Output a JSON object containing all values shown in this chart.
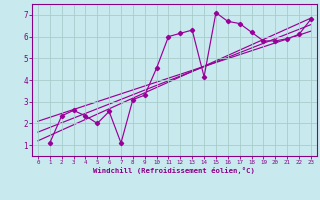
{
  "title": "",
  "xlabel": "Windchill (Refroidissement éolien,°C)",
  "ylabel": "",
  "bg_color": "#c8eaee",
  "line_color": "#990099",
  "grid_color": "#a8cccc",
  "axis_color": "#880088",
  "xlim": [
    -0.5,
    23.5
  ],
  "ylim": [
    0.5,
    7.5
  ],
  "xticks": [
    0,
    1,
    2,
    3,
    4,
    5,
    6,
    7,
    8,
    9,
    10,
    11,
    12,
    13,
    14,
    15,
    16,
    17,
    18,
    19,
    20,
    21,
    22,
    23
  ],
  "yticks": [
    1,
    2,
    3,
    4,
    5,
    6,
    7
  ],
  "scatter_x": [
    1,
    2,
    3,
    4,
    5,
    6,
    7,
    8,
    9,
    10,
    11,
    12,
    13,
    14,
    15,
    16,
    17,
    18,
    19,
    20,
    21,
    22,
    23
  ],
  "scatter_y": [
    1.1,
    2.35,
    2.6,
    2.35,
    2.0,
    2.55,
    1.1,
    3.1,
    3.3,
    4.55,
    6.0,
    6.15,
    6.3,
    4.15,
    7.1,
    6.7,
    6.6,
    6.2,
    5.8,
    5.8,
    5.9,
    6.1,
    6.8
  ],
  "reg_lines": [
    {
      "x": [
        0,
        23
      ],
      "y": [
        1.2,
        6.85
      ]
    },
    {
      "x": [
        0,
        23
      ],
      "y": [
        1.6,
        6.55
      ]
    },
    {
      "x": [
        0,
        23
      ],
      "y": [
        2.1,
        6.25
      ]
    }
  ]
}
